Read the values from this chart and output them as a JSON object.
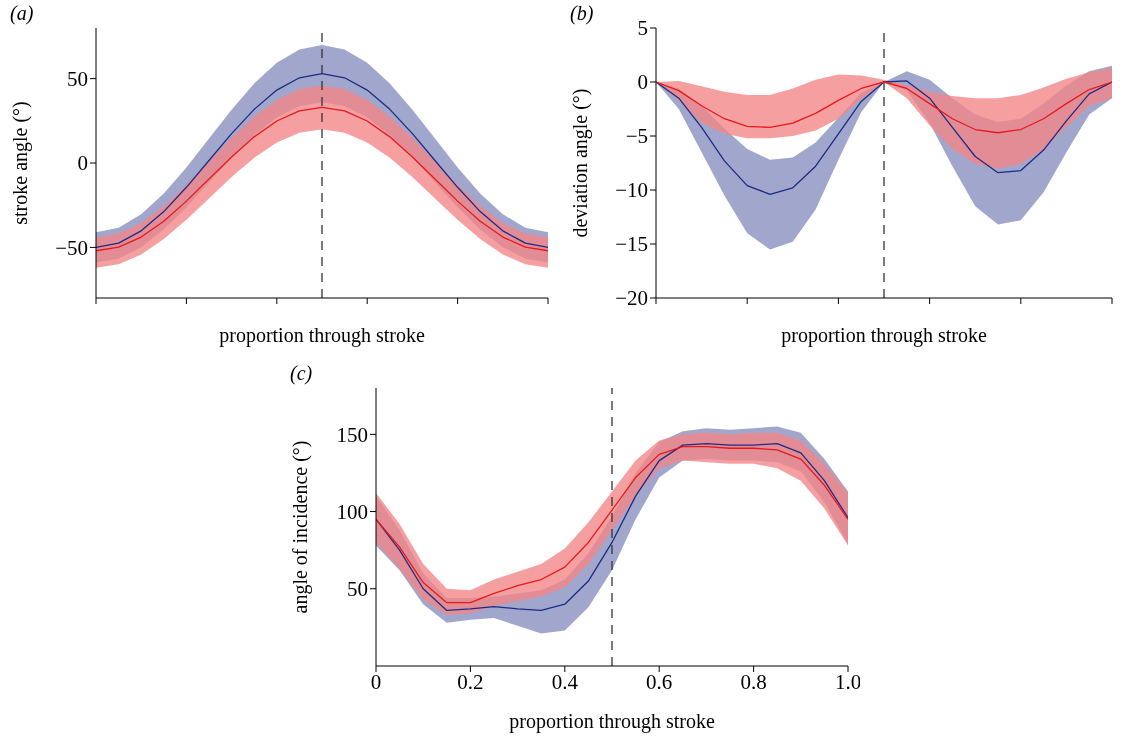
{
  "chart_data": [
    {
      "type": "line",
      "title": "(a)",
      "xlabel": "proportion through stroke",
      "ylabel": "stroke angle (°)",
      "tick_labels": "y",
      "ylim": [
        -80,
        80
      ],
      "yticks": [
        {
          "value": -50,
          "label": "−50"
        },
        0,
        50
      ],
      "categories": [
        null,
        null,
        null,
        null,
        null,
        null,
        null,
        null,
        null,
        null,
        null,
        null,
        null,
        null,
        null,
        null,
        null,
        null,
        null,
        null,
        null
      ],
      "series": [
        {
          "color": "#1c2c84",
          "values": [
            -50,
            -47.5,
            -40.2,
            -28.8,
            -14.4,
            1.5,
            17.4,
            31.8,
            43.2,
            50.5,
            53,
            50.5,
            43.2,
            31.8,
            17.4,
            1.5,
            -14.4,
            -28.8,
            -40.2,
            -47.5,
            -50
          ],
          "lower": [
            -59,
            -56.7,
            -49.9,
            -39.4,
            -26.2,
            -11.5,
            3.2,
            16.4,
            26.9,
            33.7,
            36,
            33.7,
            26.9,
            16.4,
            3.2,
            -11.5,
            -26.2,
            -39.4,
            -49.9,
            -56.7,
            -59
          ],
          "upper": [
            -41,
            -38.3,
            -30.4,
            -18.1,
            -2.6,
            14.5,
            31.6,
            47.1,
            59.4,
            67.3,
            70,
            67.3,
            59.4,
            47.1,
            31.6,
            14.5,
            -2.6,
            -18.1,
            -30.4,
            -38.3,
            -41
          ]
        },
        {
          "color": "#e8191b",
          "values": [
            -52,
            -49.9,
            -43.9,
            -34.5,
            -22.6,
            -9.5,
            3.6,
            15.5,
            24.9,
            30.9,
            33,
            30.9,
            24.9,
            15.5,
            3.6,
            -9.5,
            -22.6,
            -34.5,
            -43.9,
            -49.9,
            -52
          ],
          "lower": [
            -62,
            -60,
            -54.2,
            -45.1,
            -33.7,
            -21,
            -8.3,
            3.1,
            12.2,
            18,
            20,
            18,
            12.2,
            3.1,
            -8.3,
            -21,
            -33.7,
            -45.1,
            -54.2,
            -60,
            -62
          ],
          "upper": [
            -44,
            -41.8,
            -35.4,
            -25.5,
            -12.9,
            1,
            14.9,
            27.5,
            37.4,
            43.8,
            46,
            43.8,
            37.4,
            27.5,
            14.9,
            1,
            -12.9,
            -25.5,
            -35.4,
            -41.8,
            -44
          ]
        }
      ]
    },
    {
      "type": "line",
      "title": "(b)",
      "xlabel": "proportion through stroke",
      "ylabel": "deviation angle (°)",
      "tick_labels": "y",
      "ylim": [
        -20,
        5
      ],
      "yticks": [
        {
          "value": -20,
          "label": "−20"
        },
        {
          "value": -15,
          "label": "−15"
        },
        {
          "value": -10,
          "label": "−10"
        },
        {
          "value": -5,
          "label": "−5"
        },
        0,
        5
      ],
      "categories": [
        null,
        null,
        null,
        null,
        null,
        null,
        null,
        null,
        null,
        null,
        null,
        null,
        null,
        null,
        null,
        null,
        null,
        null,
        null,
        null,
        null
      ],
      "series": [
        {
          "color": "#1c2c84",
          "values": [
            0,
            -1.5,
            -4.2,
            -7.3,
            -9.6,
            -10.4,
            -9.8,
            -7.8,
            -4.8,
            -1.8,
            0,
            0.1,
            -1.5,
            -4.2,
            -6.9,
            -8.4,
            -8.2,
            -6.3,
            -3.6,
            -1.1,
            0
          ],
          "lower": [
            0,
            -2.5,
            -6.5,
            -10.5,
            -14,
            -15.5,
            -14.8,
            -11.8,
            -7.2,
            -2.8,
            0,
            -0.8,
            -3.8,
            -7.8,
            -11.5,
            -13.2,
            -12.8,
            -10.2,
            -6.5,
            -3,
            -1.5
          ],
          "upper": [
            0,
            -0.6,
            -2.2,
            -4.3,
            -6.2,
            -7.2,
            -7,
            -5.6,
            -3.3,
            -1,
            0,
            1,
            0.2,
            -1.5,
            -3,
            -3.7,
            -3.4,
            -2,
            -0.3,
            1,
            1.5
          ]
        },
        {
          "color": "#e8191b",
          "values": [
            0,
            -0.8,
            -2.2,
            -3.4,
            -4.1,
            -4.2,
            -3.8,
            -2.9,
            -1.7,
            -0.6,
            0,
            -0.6,
            -2,
            -3.4,
            -4.4,
            -4.7,
            -4.4,
            -3.4,
            -2,
            -0.7,
            0
          ],
          "lower": [
            0,
            -1.7,
            -3.8,
            -4.8,
            -5.2,
            -5.2,
            -5,
            -4.5,
            -3.4,
            -1.6,
            0,
            -1.5,
            -4,
            -6.2,
            -7.6,
            -8,
            -7.6,
            -6.2,
            -4.2,
            -2.2,
            -1.5
          ],
          "upper": [
            0,
            0.1,
            -0.4,
            -0.9,
            -1.2,
            -1.2,
            -0.6,
            0.2,
            0.7,
            0.6,
            0.2,
            -0.3,
            -0.9,
            -1.3,
            -1.5,
            -1.5,
            -1.2,
            -0.5,
            0.3,
            0.9,
            1.3
          ]
        }
      ]
    },
    {
      "type": "line",
      "title": "(c)",
      "xlabel": "proportion through stroke",
      "ylabel": "angle of incidence (°)",
      "xlim": [
        0,
        1
      ],
      "ylim": [
        0,
        180
      ],
      "xticks": [
        0,
        0.2,
        0.4,
        0.6,
        0.8,
        {
          "value": 1,
          "label": "1.0"
        }
      ],
      "yticks": [
        50,
        100,
        150
      ],
      "ref_lines": [
        {
          "axis": "x",
          "value": 0.5,
          "label": null,
          "color": "#333333",
          "line_style": "dashed"
        }
      ],
      "x": [
        0,
        0.05,
        0.1,
        0.15,
        0.2,
        0.25,
        0.3,
        0.35,
        0.4,
        0.45,
        0.5,
        0.55,
        0.6,
        0.65,
        0.7,
        0.75,
        0.8,
        0.85,
        0.9,
        0.95,
        1
      ],
      "series": [
        {
          "color": "#1c2c84",
          "values": [
            95,
            75,
            50,
            36,
            37,
            38.5,
            37,
            36,
            40,
            55,
            80,
            110,
            133,
            143,
            144,
            143,
            143,
            144,
            138,
            120,
            96
          ],
          "lower": [
            78,
            62,
            40,
            28,
            30,
            31,
            26,
            21,
            23,
            38,
            62,
            95,
            122,
            133,
            134,
            133,
            133,
            132,
            126,
            106,
            79
          ],
          "upper": [
            110,
            88,
            60,
            44,
            44,
            45,
            47,
            49,
            56,
            73,
            97,
            125,
            145,
            152,
            154,
            153,
            154,
            155,
            151,
            134,
            113
          ]
        },
        {
          "color": "#e8191b",
          "values": [
            95,
            77,
            54,
            41,
            41,
            47,
            52,
            56,
            64,
            80,
            101,
            122,
            137,
            142,
            142,
            141,
            141,
            140,
            134,
            117,
            95
          ],
          "lower": [
            80,
            63,
            43,
            33,
            34,
            39,
            42,
            45,
            51,
            66,
            88,
            110,
            128,
            133,
            132,
            131,
            131,
            128,
            120,
            102,
            78
          ],
          "upper": [
            112,
            92,
            66,
            50,
            49,
            56,
            61,
            66,
            76,
            93,
            113,
            133,
            146,
            150,
            151,
            150,
            151,
            151,
            146,
            131,
            112
          ]
        }
      ]
    }
  ]
}
